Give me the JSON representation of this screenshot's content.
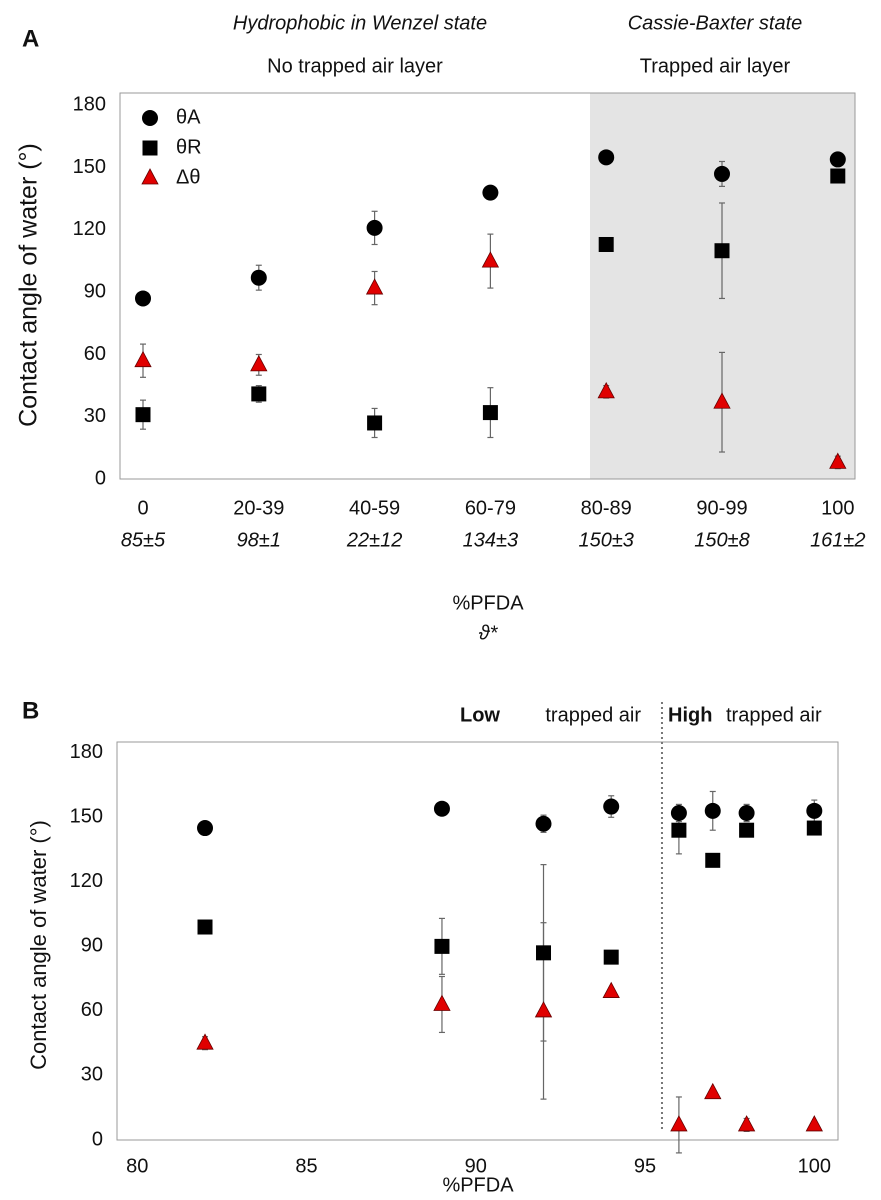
{
  "chart_data": [
    {
      "type": "scatter",
      "panel": "A",
      "annotations": [
        "Hydrophobic in Wenzel state",
        "No trapped air layer",
        "Cassie-Baxter state",
        "Trapped air layer"
      ],
      "ylabel": "Contact angle of water (°)",
      "xlabel": "%PFDA",
      "xlabel2": "ϑ*",
      "categories": [
        "0",
        "20-39",
        "40-59",
        "60-79",
        "80-89",
        "90-99",
        "100"
      ],
      "category_sublabels": [
        "85±5",
        "98±1",
        "22±12",
        "134±3",
        "150±3",
        "150±8",
        "161±2"
      ],
      "ylim": [
        0,
        186
      ],
      "yticks": [
        0,
        30,
        60,
        90,
        120,
        150,
        180
      ],
      "series": [
        {
          "name": "θA",
          "color": "#000000",
          "marker": "circle",
          "values": [
            87,
            97,
            121,
            138,
            155,
            147,
            154
          ],
          "errors": [
            2,
            6,
            8,
            3,
            2,
            6,
            3
          ]
        },
        {
          "name": "θR",
          "color": "#000000",
          "marker": "square",
          "values": [
            31,
            41,
            27,
            32,
            113,
            110,
            146
          ],
          "errors": [
            7,
            4,
            7,
            12,
            2,
            23,
            2
          ]
        },
        {
          "name": "Δθ",
          "color": "#e00000",
          "marker": "triangle",
          "values": [
            57,
            55,
            92,
            105,
            42,
            37,
            8
          ],
          "errors": [
            8,
            5,
            8,
            13,
            3,
            24,
            3
          ]
        }
      ]
    },
    {
      "type": "scatter",
      "panel": "B",
      "annotations": [
        "Low",
        "trapped air",
        "High",
        "trapped air"
      ],
      "ylabel": "Contact angle of water (°)",
      "xlabel": "%PFDA",
      "x": [
        82,
        89,
        92,
        94,
        96,
        97,
        98,
        100
      ],
      "xlim": [
        79.4,
        100.7
      ],
      "xticks": [
        80,
        85,
        90,
        95,
        100
      ],
      "ylim": [
        0,
        185
      ],
      "yticks": [
        0,
        30,
        60,
        90,
        120,
        150,
        180
      ],
      "vline": 95.5,
      "series": [
        {
          "color": "#000000",
          "marker": "circle",
          "values": [
            145,
            154,
            147,
            155,
            152,
            153,
            152,
            153
          ],
          "errors": [
            1,
            3,
            4,
            5,
            4,
            9,
            4,
            5
          ]
        },
        {
          "color": "#000000",
          "marker": "square",
          "values": [
            99,
            90,
            87,
            85,
            144,
            130,
            144,
            145
          ],
          "errors": [
            2,
            13,
            41,
            1,
            11,
            1,
            1,
            1
          ]
        },
        {
          "color": "#e00000",
          "marker": "triangle",
          "values": [
            45,
            63,
            60,
            69,
            7,
            22,
            7,
            7
          ],
          "errors": [
            3,
            13,
            41,
            1,
            13,
            1,
            3,
            1
          ]
        }
      ]
    }
  ]
}
